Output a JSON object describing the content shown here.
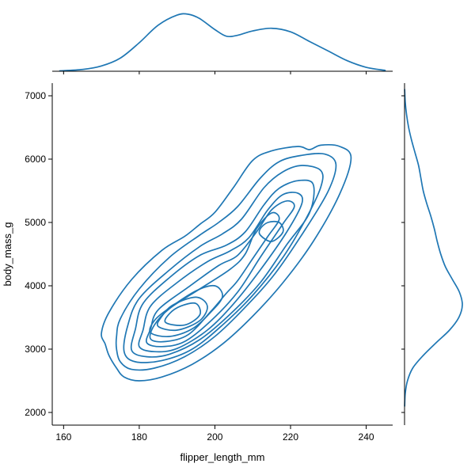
{
  "chart_data": {
    "type": "kde-joint",
    "xlabel": "flipper_length_mm",
    "ylabel": "body_mass_g",
    "xlim": [
      157,
      247
    ],
    "ylim": [
      1800,
      7200
    ],
    "x_ticks": [
      160,
      180,
      200,
      220,
      240
    ],
    "y_ticks": [
      2000,
      3000,
      4000,
      5000,
      6000,
      7000
    ],
    "line_color": "#1f77b4",
    "grid": false,
    "contours": [
      {
        "level": 1,
        "points": [
          [
            171,
            3080
          ],
          [
            172,
            2900
          ],
          [
            174,
            2700
          ],
          [
            176,
            2560
          ],
          [
            180,
            2500
          ],
          [
            186,
            2560
          ],
          [
            194,
            2760
          ],
          [
            202,
            3080
          ],
          [
            210,
            3520
          ],
          [
            218,
            4050
          ],
          [
            226,
            4700
          ],
          [
            233,
            5450
          ],
          [
            236,
            6020
          ],
          [
            233,
            6200
          ],
          [
            228,
            6220
          ],
          [
            225,
            6150
          ],
          [
            222,
            6200
          ],
          [
            215,
            6130
          ],
          [
            210,
            5980
          ],
          [
            205,
            5560
          ],
          [
            200,
            5160
          ],
          [
            196,
            4970
          ],
          [
            192,
            4780
          ],
          [
            186,
            4560
          ],
          [
            178,
            4100
          ],
          [
            172,
            3580
          ],
          [
            170,
            3250
          ]
        ]
      },
      {
        "level": 2,
        "points": [
          [
            174,
            3000
          ],
          [
            175,
            2800
          ],
          [
            178,
            2680
          ],
          [
            184,
            2700
          ],
          [
            192,
            2880
          ],
          [
            200,
            3200
          ],
          [
            208,
            3660
          ],
          [
            216,
            4200
          ],
          [
            224,
            4900
          ],
          [
            230,
            5500
          ],
          [
            232,
            5920
          ],
          [
            229,
            6080
          ],
          [
            223,
            6060
          ],
          [
            217,
            5960
          ],
          [
            212,
            5700
          ],
          [
            206,
            5250
          ],
          [
            201,
            5000
          ],
          [
            196,
            4800
          ],
          [
            188,
            4450
          ],
          [
            180,
            3950
          ],
          [
            175,
            3480
          ],
          [
            174,
            3200
          ]
        ]
      },
      {
        "level": 3,
        "points": [
          [
            176,
            2960
          ],
          [
            179,
            2800
          ],
          [
            186,
            2820
          ],
          [
            194,
            3000
          ],
          [
            202,
            3380
          ],
          [
            210,
            3850
          ],
          [
            218,
            4450
          ],
          [
            224,
            5050
          ],
          [
            228,
            5560
          ],
          [
            228,
            5820
          ],
          [
            223,
            5900
          ],
          [
            218,
            5800
          ],
          [
            213,
            5550
          ],
          [
            207,
            5050
          ],
          [
            202,
            4820
          ],
          [
            196,
            4620
          ],
          [
            188,
            4250
          ],
          [
            180,
            3800
          ],
          [
            177,
            3380
          ]
        ]
      },
      {
        "level": 4,
        "points": [
          [
            178,
            2980
          ],
          [
            182,
            2880
          ],
          [
            188,
            2920
          ],
          [
            196,
            3150
          ],
          [
            204,
            3550
          ],
          [
            212,
            4050
          ],
          [
            219,
            4650
          ],
          [
            225,
            5150
          ],
          [
            226,
            5600
          ],
          [
            222,
            5660
          ],
          [
            217,
            5540
          ],
          [
            213,
            5280
          ],
          [
            208,
            4850
          ],
          [
            203,
            4640
          ],
          [
            196,
            4480
          ],
          [
            188,
            4130
          ],
          [
            181,
            3720
          ],
          [
            179,
            3320
          ]
        ]
      },
      {
        "level": 5,
        "points": [
          [
            180,
            3040
          ],
          [
            184,
            2960
          ],
          [
            190,
            3010
          ],
          [
            198,
            3300
          ],
          [
            205,
            3720
          ],
          [
            212,
            4250
          ],
          [
            219,
            4850
          ],
          [
            223,
            5300
          ],
          [
            222,
            5460
          ],
          [
            218,
            5440
          ],
          [
            214,
            5200
          ],
          [
            209,
            4760
          ],
          [
            204,
            4550
          ],
          [
            198,
            4380
          ],
          [
            190,
            4050
          ],
          [
            183,
            3680
          ],
          [
            181,
            3300
          ]
        ]
      },
      {
        "level": 6,
        "points": [
          [
            182,
            3100
          ],
          [
            186,
            3040
          ],
          [
            192,
            3120
          ],
          [
            199,
            3450
          ],
          [
            206,
            3900
          ],
          [
            212,
            4450
          ],
          [
            218,
            4980
          ],
          [
            221,
            5250
          ],
          [
            219,
            5340
          ],
          [
            215,
            5200
          ],
          [
            211,
            4850
          ],
          [
            206,
            4480
          ],
          [
            201,
            4320
          ],
          [
            193,
            3980
          ],
          [
            185,
            3620
          ],
          [
            183,
            3320
          ]
        ]
      },
      {
        "level": 7,
        "points": [
          [
            183,
            3160
          ],
          [
            187,
            3120
          ],
          [
            193,
            3230
          ],
          [
            199,
            3600
          ],
          [
            203,
            3880
          ],
          [
            206,
            4080
          ],
          [
            210,
            4430
          ],
          [
            214,
            4780
          ],
          [
            217,
            5050
          ],
          [
            215,
            5150
          ],
          [
            211,
            4900
          ],
          [
            208,
            4500
          ],
          [
            204,
            4260
          ],
          [
            196,
            3950
          ],
          [
            188,
            3640
          ],
          [
            184,
            3380
          ]
        ]
      },
      {
        "level": 8,
        "points": [
          [
            183,
            3260
          ],
          [
            188,
            3200
          ],
          [
            194,
            3320
          ],
          [
            199,
            3590
          ],
          [
            202,
            3830
          ],
          [
            200,
            4000
          ],
          [
            195,
            3920
          ],
          [
            188,
            3650
          ],
          [
            184,
            3450
          ]
        ]
      },
      {
        "level": 9,
        "points": [
          [
            185,
            3360
          ],
          [
            190,
            3300
          ],
          [
            196,
            3450
          ],
          [
            198,
            3680
          ],
          [
            195,
            3820
          ],
          [
            189,
            3700
          ],
          [
            186,
            3520
          ]
        ]
      },
      {
        "level": 10,
        "points": [
          [
            187,
            3420
          ],
          [
            192,
            3380
          ],
          [
            196,
            3540
          ],
          [
            195,
            3720
          ],
          [
            191,
            3680
          ],
          [
            188,
            3560
          ]
        ]
      },
      {
        "level": 11,
        "points": [
          [
            212,
            4800
          ],
          [
            215,
            4700
          ],
          [
            218,
            4850
          ],
          [
            217,
            5000
          ],
          [
            214,
            5000
          ],
          [
            212,
            4900
          ]
        ]
      }
    ],
    "marginal_x": {
      "x": [
        159,
        165,
        170,
        175,
        180,
        185,
        190,
        193,
        196,
        200,
        203,
        206,
        210,
        215,
        220,
        225,
        230,
        235,
        240,
        245
      ],
      "density": [
        0.001,
        0.004,
        0.012,
        0.03,
        0.065,
        0.105,
        0.128,
        0.13,
        0.12,
        0.095,
        0.08,
        0.082,
        0.092,
        0.098,
        0.09,
        0.068,
        0.046,
        0.024,
        0.009,
        0.002
      ]
    },
    "marginal_y": {
      "y": [
        2100,
        2300,
        2500,
        2700,
        2900,
        3100,
        3300,
        3500,
        3700,
        3900,
        4100,
        4300,
        4500,
        4700,
        4900,
        5100,
        5300,
        5500,
        5700,
        5900,
        6100,
        6300,
        6500,
        6700,
        6900,
        7100
      ],
      "density": [
        0.002,
        0.012,
        0.05,
        0.14,
        0.32,
        0.54,
        0.77,
        0.93,
        0.99,
        0.94,
        0.82,
        0.7,
        0.62,
        0.56,
        0.51,
        0.45,
        0.38,
        0.32,
        0.28,
        0.24,
        0.18,
        0.12,
        0.07,
        0.035,
        0.012,
        0.002
      ]
    }
  }
}
